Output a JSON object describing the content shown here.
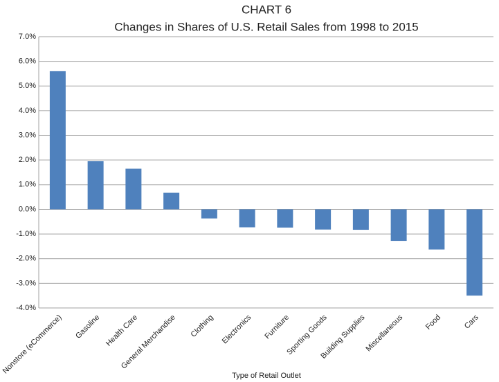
{
  "chart_data": {
    "type": "bar",
    "title": "CHART 6",
    "subtitle": "Changes in Shares of U.S. Retail Sales from 1998 to 2015",
    "x_label": "Type of Retail Outlet",
    "categories": [
      "Nonstore (eCommerce)",
      "Gasoline",
      "Health Care",
      "General Merchandise",
      "Clothing",
      "Electronics",
      "Furniture",
      "Sporting Goods",
      "Building Supplies",
      "Miscellaneous",
      "Food",
      "Cars"
    ],
    "values": [
      5.6,
      1.95,
      1.65,
      0.67,
      -0.37,
      -0.73,
      -0.74,
      -0.82,
      -0.83,
      -1.28,
      -1.63,
      -3.5
    ],
    "color": "#4f81bd",
    "ylim": [
      -4,
      7
    ],
    "yticks": [
      {
        "value": -4,
        "label": "-4.0%"
      },
      {
        "value": -3,
        "label": "-3.0%"
      },
      {
        "value": -2,
        "label": "-2.0%"
      },
      {
        "value": -1,
        "label": "-1.0%"
      },
      {
        "value": 0,
        "label": "0.0%"
      },
      {
        "value": 1,
        "label": "1.0%"
      },
      {
        "value": 2,
        "label": "2.0%"
      },
      {
        "value": 3,
        "label": "3.0%"
      },
      {
        "value": 4,
        "label": "4.0%"
      },
      {
        "value": 5,
        "label": "5.0%"
      },
      {
        "value": 6,
        "label": "6.0%"
      },
      {
        "value": 7,
        "label": "7.0%"
      }
    ],
    "grid": true
  }
}
